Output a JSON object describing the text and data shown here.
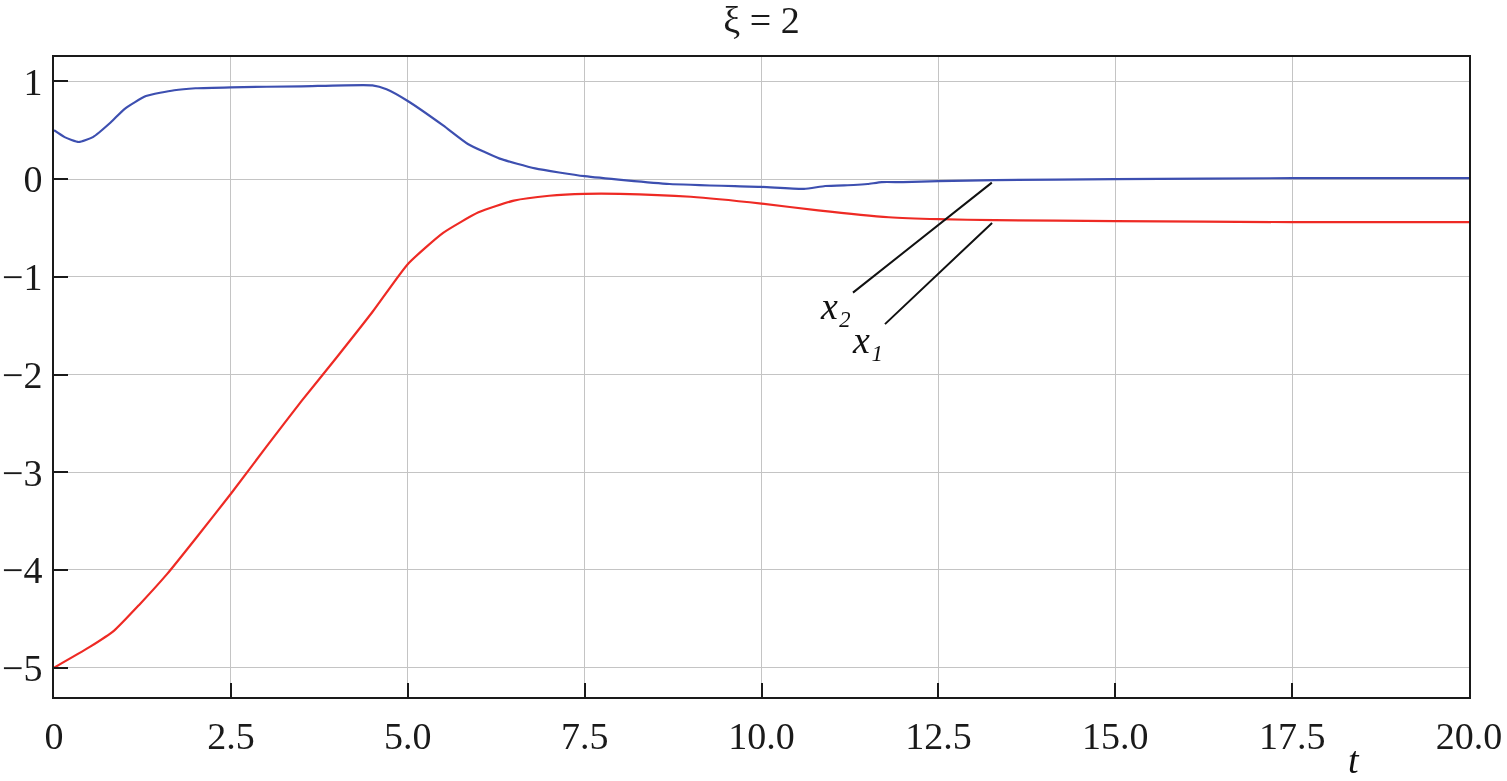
{
  "chart_data": {
    "type": "line",
    "title": "ξ = 2",
    "xlabel": "t",
    "series": [
      {
        "name": "x₁",
        "color": "#ee2a24",
        "x": [
          0,
          0.5,
          0.85,
          1.2,
          1.6,
          2.0,
          2.5,
          3.0,
          3.5,
          4.0,
          4.5,
          5.0,
          5.5,
          6.0,
          6.5,
          7.0,
          7.5,
          8.0,
          9.0,
          10.0,
          10.8,
          11.8,
          12.5,
          13.3,
          15.0,
          17.5,
          20.0
        ],
        "values": [
          -5.0,
          -4.79,
          -4.62,
          -4.36,
          -4.04,
          -3.68,
          -3.22,
          -2.74,
          -2.27,
          -1.82,
          -1.36,
          -0.87,
          -0.55,
          -0.34,
          -0.22,
          -0.17,
          -0.15,
          -0.15,
          -0.18,
          -0.25,
          -0.32,
          -0.39,
          -0.41,
          -0.42,
          -0.43,
          -0.44,
          -0.44
        ]
      },
      {
        "name": "x₂",
        "color": "#3d4fb0",
        "x": [
          0,
          0.15,
          0.35,
          0.55,
          0.8,
          1.0,
          1.3,
          1.7,
          2.0,
          2.5,
          3.5,
          4.5,
          4.7,
          5.0,
          5.5,
          5.85,
          6.3,
          6.8,
          7.5,
          8.7,
          10.0,
          10.6,
          10.9,
          11.3,
          11.5,
          11.7,
          12.0,
          12.5,
          13.3,
          15.0,
          17.5,
          20.0
        ],
        "values": [
          0.5,
          0.43,
          0.38,
          0.43,
          0.58,
          0.72,
          0.85,
          0.91,
          0.93,
          0.94,
          0.95,
          0.96,
          0.92,
          0.8,
          0.55,
          0.36,
          0.21,
          0.11,
          0.03,
          -0.05,
          -0.08,
          -0.1,
          -0.07,
          -0.06,
          -0.05,
          -0.03,
          -0.03,
          -0.02,
          -0.01,
          0.0,
          0.01,
          0.01
        ]
      }
    ],
    "xlim": [
      0,
      20
    ],
    "ylim": [
      -5.3,
      1.25
    ],
    "xticks": [
      0,
      2.5,
      {
        "value": 5,
        "label": "5.0"
      },
      7.5,
      {
        "value": 10,
        "label": "10.0"
      },
      12.5,
      {
        "value": 15,
        "label": "15.0"
      },
      17.5,
      {
        "value": 20,
        "label": "20.0"
      }
    ],
    "yticks": [
      -5,
      -4,
      -3,
      -2,
      -1,
      0,
      1
    ],
    "grid": true,
    "legend": false,
    "marker": "none",
    "line_style": "solid"
  }
}
